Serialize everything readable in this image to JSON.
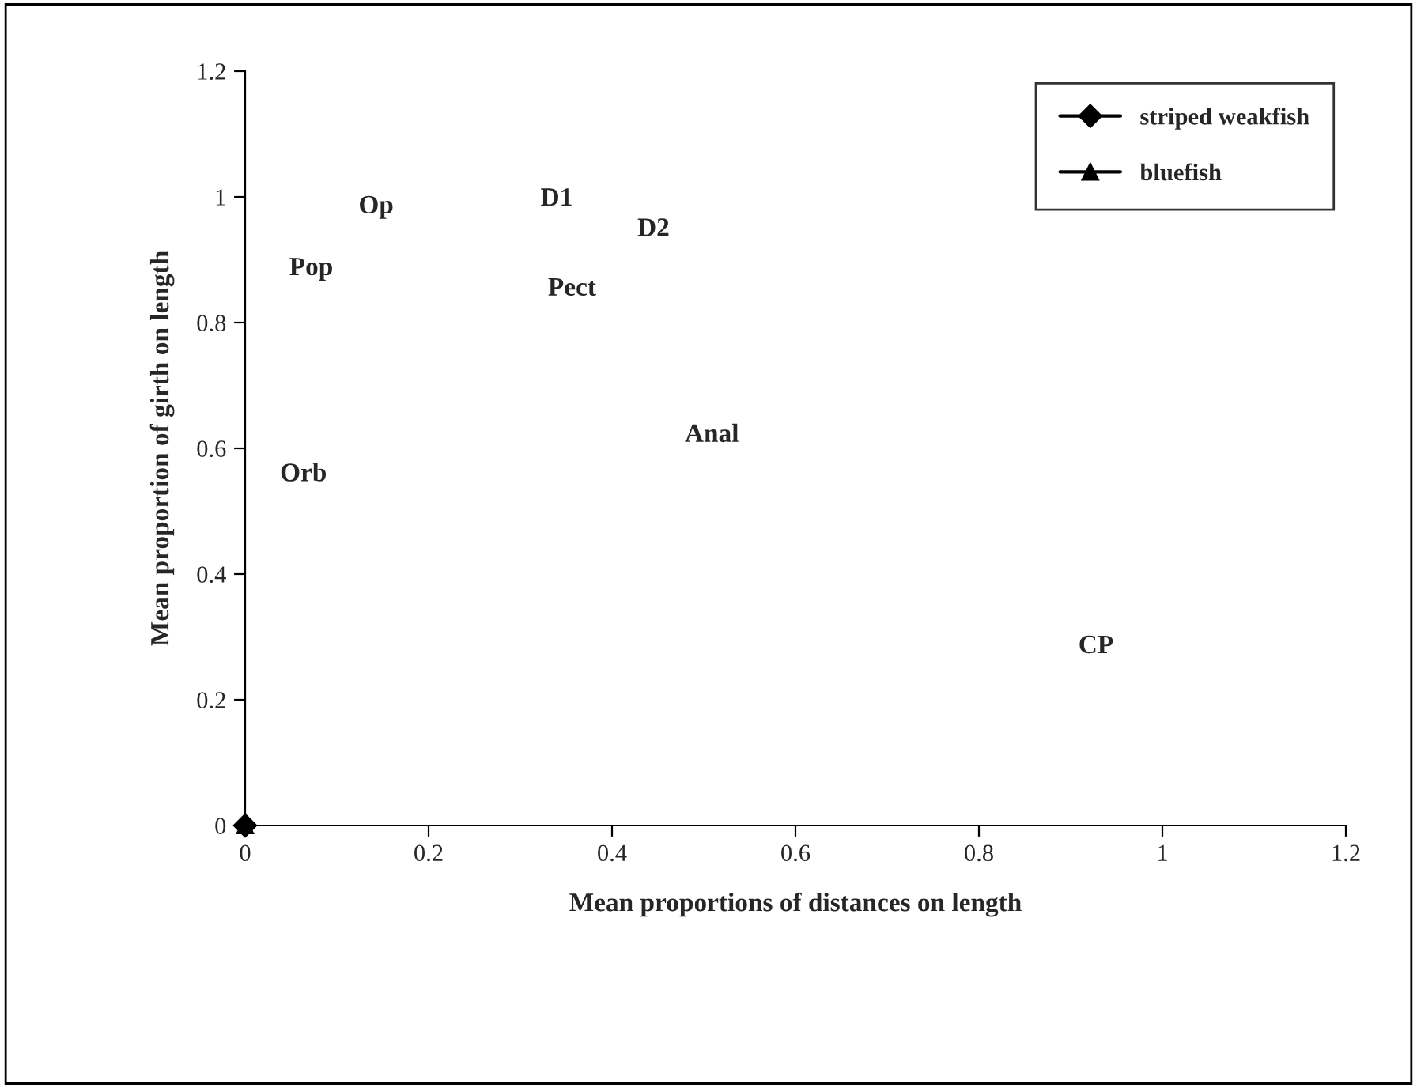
{
  "chart_data": {
    "type": "line",
    "xlabel": "Mean proportions of distances on length",
    "ylabel": "Mean proportion of girth on length",
    "x": [
      0
    ],
    "series": [
      {
        "name": "striped weakfish",
        "color": "#000000",
        "marker": "diamond",
        "values": [
          0
        ]
      },
      {
        "name": "bluefish",
        "color": "#000000",
        "marker": "triangle",
        "values": [
          0
        ]
      }
    ],
    "xlim": [
      0,
      1.2
    ],
    "ylim": [
      0,
      1.2
    ],
    "xticks": [
      0,
      0.2,
      0.4,
      0.6,
      0.8,
      1,
      1.2
    ],
    "yticks": [
      0,
      0.2,
      0.4,
      0.6,
      0.8,
      1,
      1.2
    ],
    "grid": false,
    "legend": "top right",
    "annotations": [
      "D1",
      "D2",
      "Op",
      "Pop",
      "Pect",
      "Anal",
      "Orb",
      "CP"
    ]
  }
}
